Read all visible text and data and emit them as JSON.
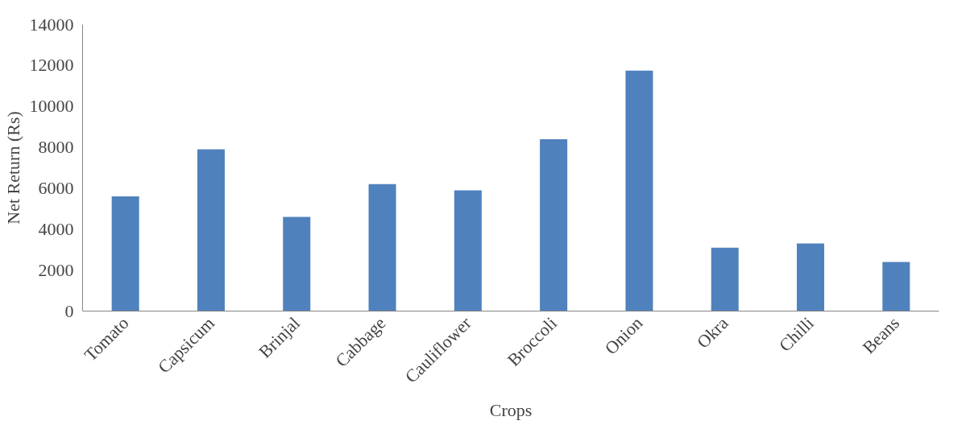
{
  "chart_data": {
    "type": "bar",
    "xlabel": "Crops",
    "ylabel": "Net Return (Rs)",
    "categories": [
      "Tomato",
      "Capsicum",
      "Brinjal",
      "Cabbage",
      "Cauliflower",
      "Broccoli",
      "Onion",
      "Okra",
      "Chilli",
      "Beans"
    ],
    "values": [
      5600,
      7900,
      4600,
      6200,
      5900,
      8400,
      11750,
      3100,
      3300,
      2400
    ],
    "color": "#4f81bd",
    "ylim": [
      0,
      14000
    ],
    "yticks": [
      0,
      2000,
      4000,
      6000,
      8000,
      10000,
      12000,
      14000
    ],
    "grid": false
  }
}
